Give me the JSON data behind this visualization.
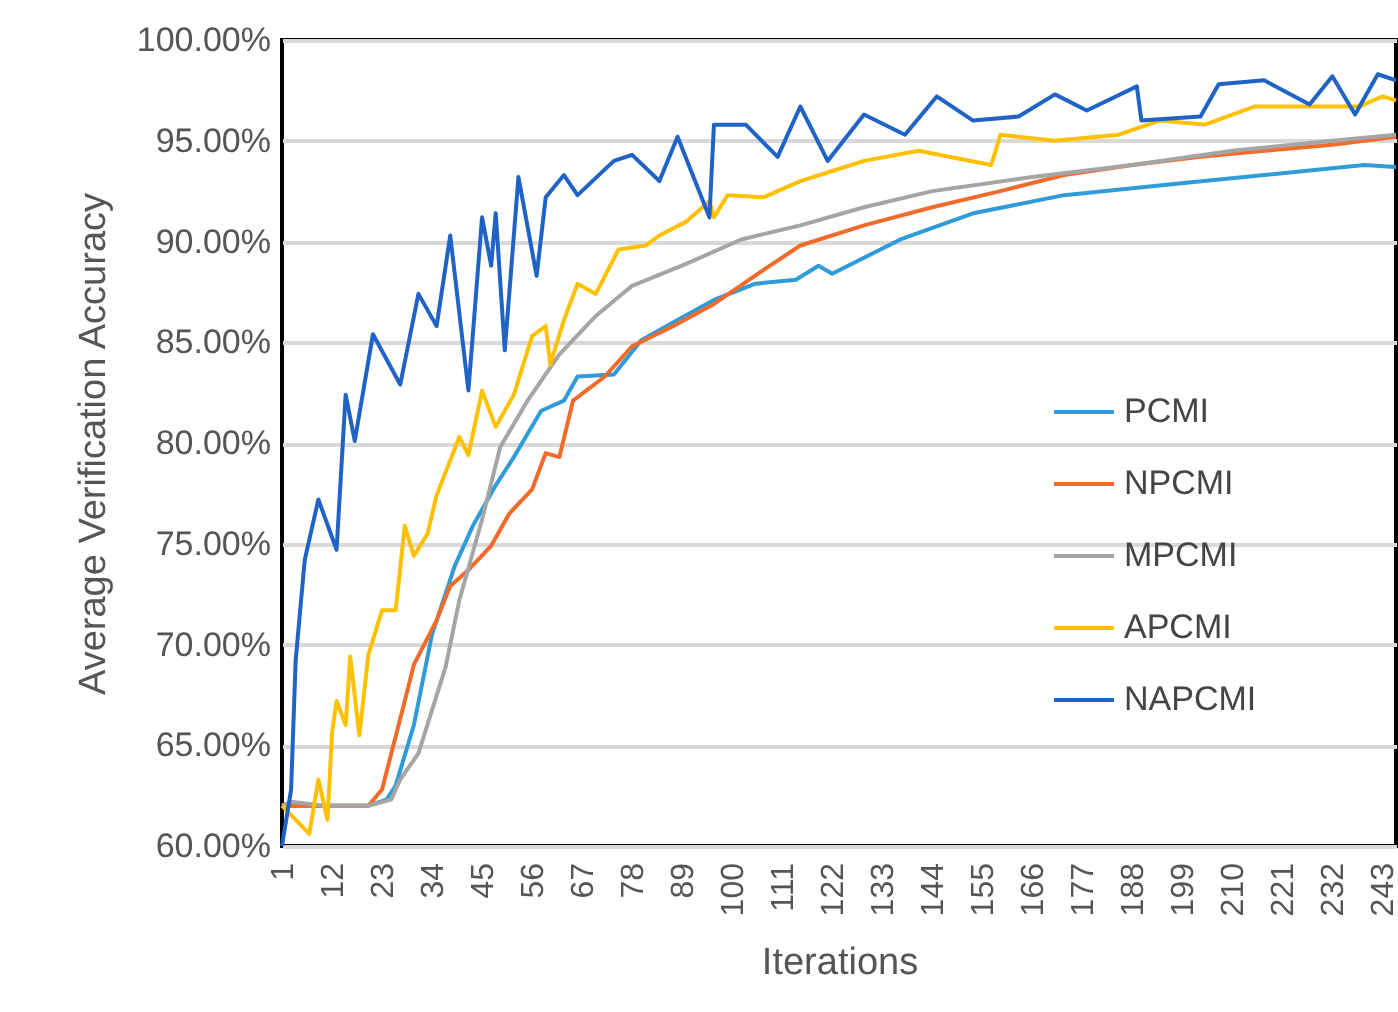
{
  "chart_data": {
    "type": "line",
    "xlabel": "Iterations",
    "ylabel": "Average Verification Accuracy",
    "xlim": [
      1,
      246
    ],
    "xticks": [
      1,
      12,
      23,
      34,
      45,
      56,
      67,
      78,
      89,
      100,
      111,
      122,
      133,
      144,
      155,
      166,
      177,
      188,
      199,
      210,
      221,
      232,
      243
    ],
    "ylim": [
      60,
      100
    ],
    "yticks": [
      {
        "value": 60,
        "label": "60.00%"
      },
      {
        "value": 65,
        "label": "65.00%"
      },
      {
        "value": 70,
        "label": "70.00%"
      },
      {
        "value": 75,
        "label": "75.00%"
      },
      {
        "value": 80,
        "label": "80.00%"
      },
      {
        "value": 85,
        "label": "85.00%"
      },
      {
        "value": 90,
        "label": "90.00%"
      },
      {
        "value": 95,
        "label": "95.00%"
      },
      {
        "value": 100,
        "label": "100.00%"
      }
    ],
    "grid": "y",
    "legend": "right",
    "line_style": "solid",
    "marker": "none",
    "series": [
      {
        "name": "PCMI",
        "color": "#2f9bd8",
        "x": [
          1,
          3,
          20,
          24,
          26,
          30,
          34,
          39,
          43,
          48,
          52,
          58,
          63,
          66,
          74,
          80,
          88,
          96,
          105,
          114,
          119,
          122,
          137,
          153,
          173,
          195,
          217,
          239,
          246
        ],
        "values": [
          62,
          62,
          62,
          62.3,
          63,
          66,
          70.5,
          73.9,
          75.9,
          77.9,
          79.3,
          81.6,
          82.1,
          83.3,
          83.4,
          85.1,
          86.1,
          87.1,
          87.9,
          88.1,
          88.8,
          88.4,
          90.1,
          91.4,
          92.3,
          92.8,
          93.3,
          93.8,
          93.7
        ]
      },
      {
        "name": "NPCMI",
        "color": "#f26b2a",
        "x": [
          1,
          3,
          10,
          20,
          23,
          28,
          30,
          35,
          38,
          42,
          47,
          51,
          56,
          59,
          62,
          65,
          72,
          78,
          87,
          96,
          107,
          115,
          129,
          144,
          159,
          173,
          188,
          203,
          217,
          232,
          246
        ],
        "values": [
          62,
          62,
          62,
          62,
          62.8,
          67.2,
          69,
          71.2,
          72.9,
          73.7,
          74.9,
          76.5,
          77.7,
          79.5,
          79.3,
          82.1,
          83.3,
          84.8,
          85.8,
          86.9,
          88.6,
          89.8,
          90.8,
          91.7,
          92.5,
          93.3,
          93.8,
          94.2,
          94.5,
          94.8,
          95.2
        ]
      },
      {
        "name": "MPCMI",
        "color": "#a5a5a5",
        "x": [
          1,
          3,
          10,
          20,
          25,
          27,
          31,
          37,
          40,
          45,
          49,
          55,
          62,
          70,
          78,
          90,
          102,
          115,
          129,
          144,
          166,
          188,
          210,
          232,
          246
        ],
        "values": [
          62,
          62.2,
          62,
          62,
          62.3,
          63.3,
          64.6,
          68.9,
          72.2,
          76.2,
          79.8,
          82.1,
          84.4,
          86.3,
          87.8,
          88.9,
          90.1,
          90.8,
          91.7,
          92.5,
          93.2,
          93.8,
          94.5,
          95,
          95.3
        ]
      },
      {
        "name": "APCMI",
        "color": "#ffc000",
        "x": [
          1,
          7,
          9,
          11,
          12,
          13,
          15,
          16,
          18,
          20,
          23,
          26,
          28,
          30,
          33,
          35,
          40,
          42,
          45,
          48,
          52,
          56,
          59,
          60,
          63,
          66,
          70,
          75,
          81,
          84,
          90,
          95,
          96,
          99,
          107,
          115,
          122,
          129,
          141,
          157,
          159,
          171,
          185,
          194,
          204,
          215,
          226,
          238,
          243,
          246
        ],
        "values": [
          62,
          60.6,
          63.3,
          61.3,
          65.6,
          67.2,
          66,
          69.4,
          65.5,
          69.5,
          71.7,
          71.7,
          75.9,
          74.4,
          75.5,
          77.4,
          80.3,
          79.4,
          82.6,
          80.8,
          82.4,
          85.3,
          85.8,
          83.9,
          86.1,
          87.9,
          87.4,
          89.6,
          89.8,
          90.3,
          91,
          92,
          91.2,
          92.3,
          92.2,
          93,
          93.5,
          94,
          94.5,
          93.8,
          95.3,
          95,
          95.3,
          96,
          95.8,
          96.7,
          96.7,
          96.7,
          97.2,
          97
        ]
      },
      {
        "name": "NAPCMI",
        "color": "#1f63c6",
        "x": [
          1,
          3,
          4,
          6,
          9,
          13,
          15,
          17,
          21,
          27,
          31,
          35,
          38,
          42,
          45,
          47,
          48,
          50,
          53,
          57,
          59,
          63,
          66,
          74,
          78,
          84,
          88,
          95,
          96,
          103,
          110,
          115,
          121,
          129,
          138,
          145,
          153,
          163,
          171,
          178,
          189,
          190,
          203,
          207,
          217,
          227,
          232,
          237,
          242,
          246
        ],
        "values": [
          60,
          62.8,
          69.2,
          74.2,
          77.2,
          74.7,
          82.4,
          80.1,
          85.4,
          82.9,
          87.4,
          85.8,
          90.3,
          82.6,
          91.2,
          88.8,
          91.4,
          84.6,
          93.2,
          88.3,
          92.2,
          93.3,
          92.3,
          94,
          94.3,
          93,
          95.2,
          91.2,
          95.8,
          95.8,
          94.2,
          96.7,
          94,
          96.3,
          95.3,
          97.2,
          96,
          96.2,
          97.3,
          96.5,
          97.7,
          96,
          96.2,
          97.8,
          98,
          96.8,
          98.2,
          96.3,
          98.3,
          98
        ]
      }
    ]
  }
}
